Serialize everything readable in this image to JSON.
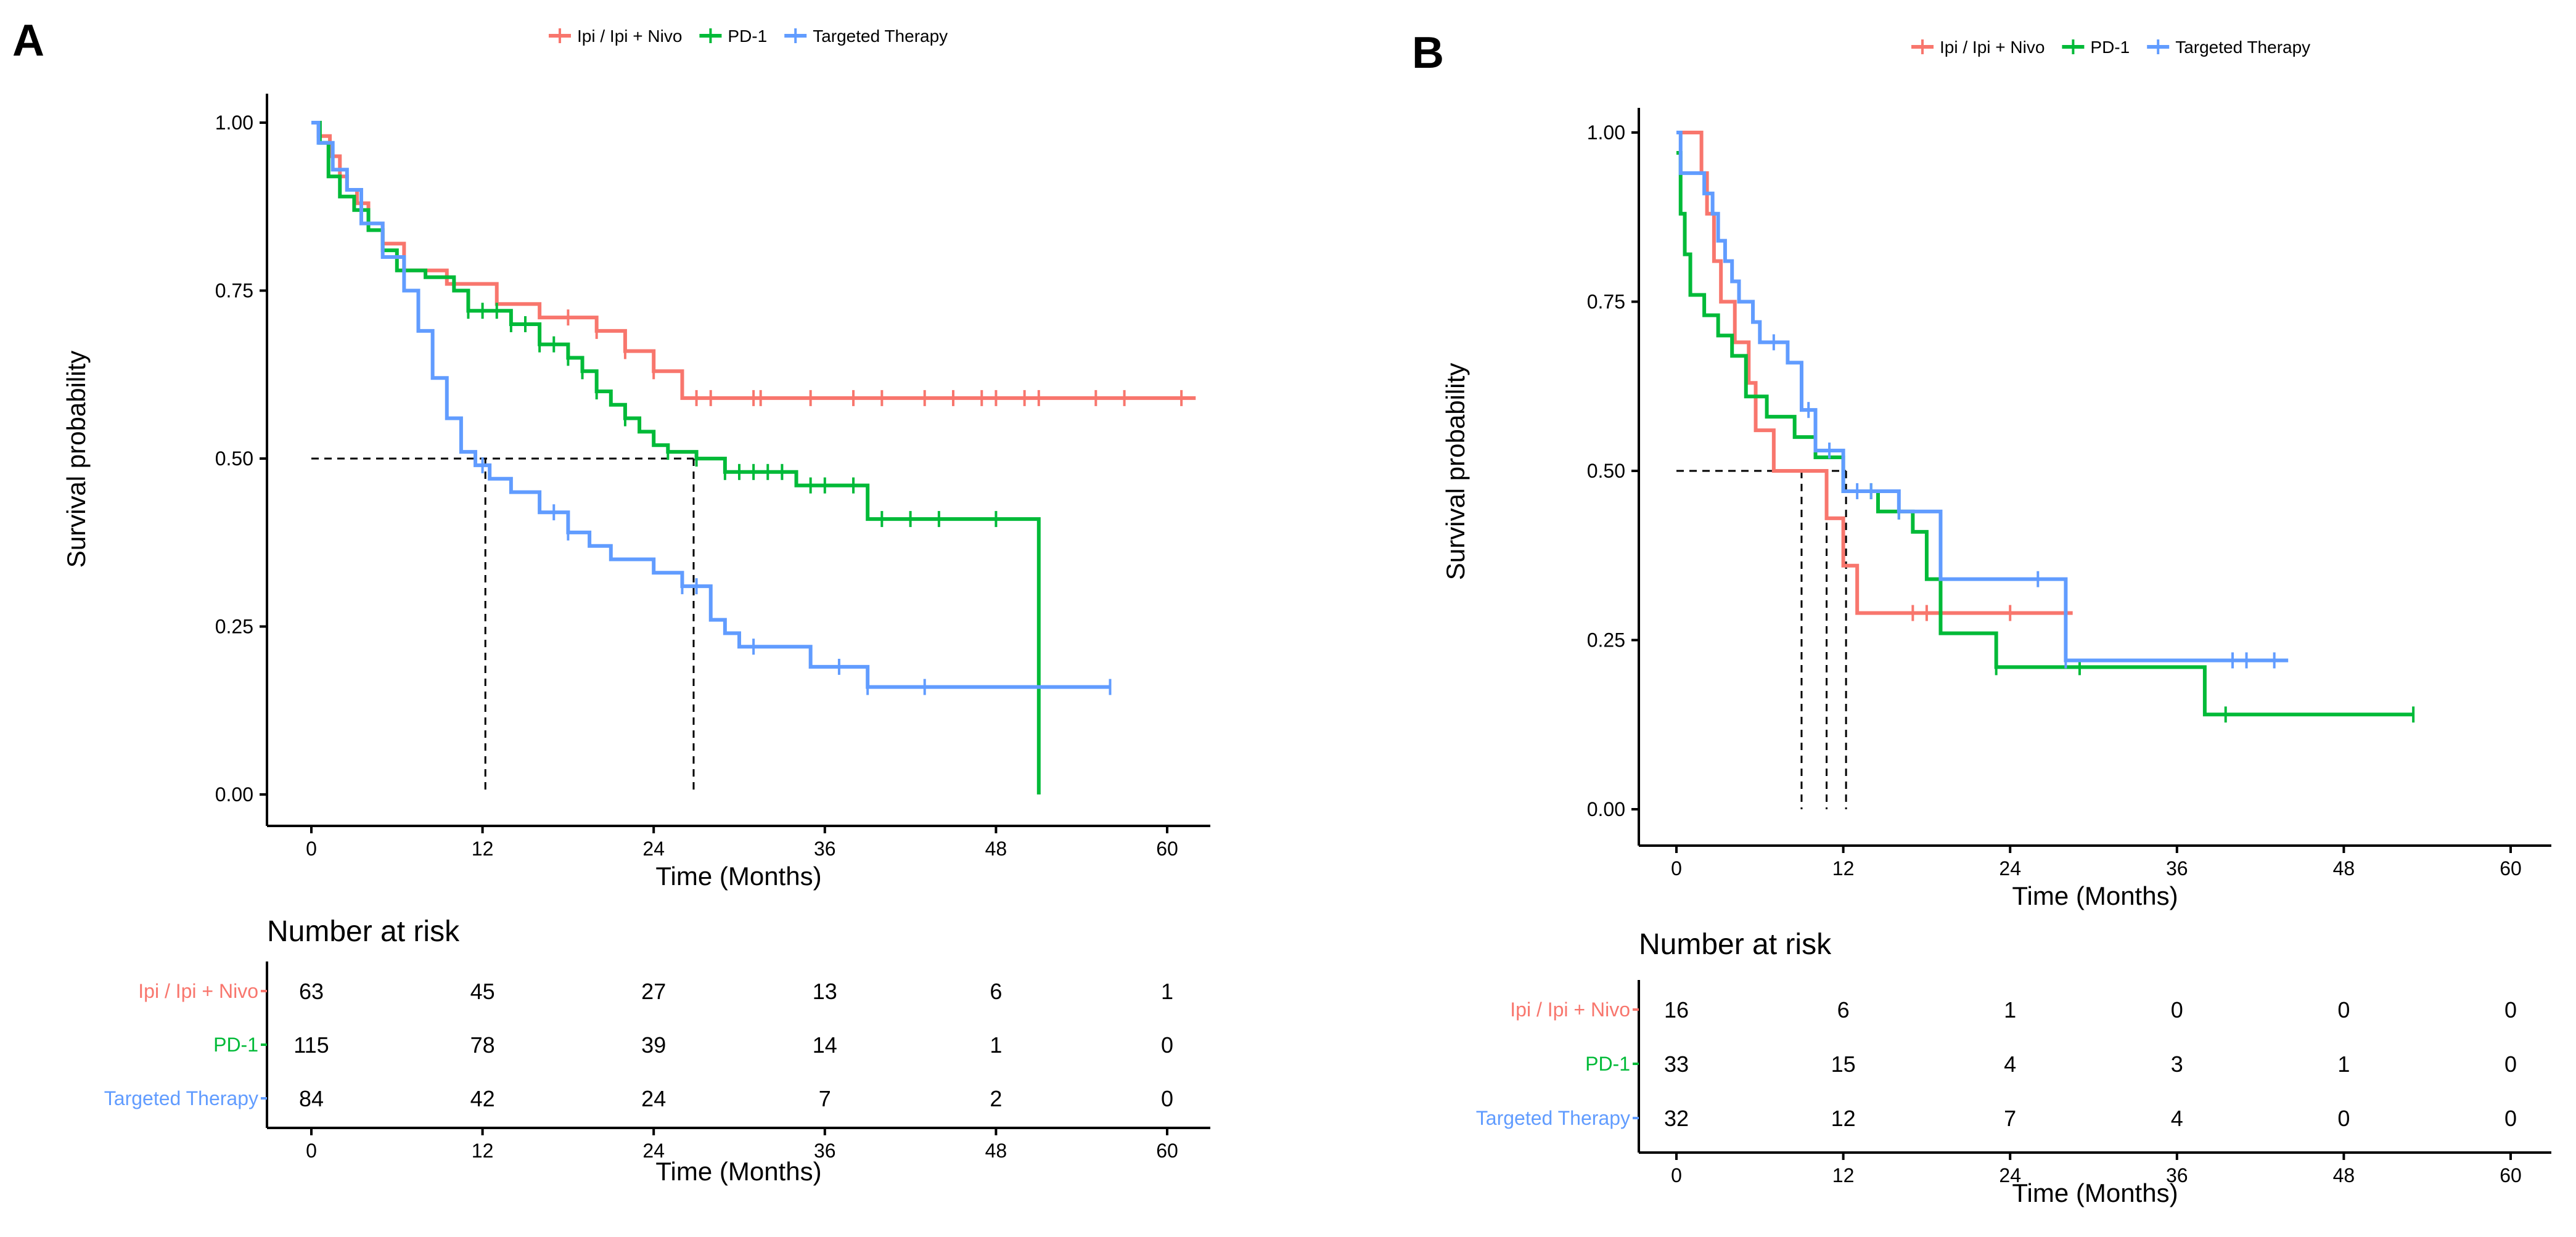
{
  "colors": {
    "ipi": "#F8766D",
    "pd1": "#00BA38",
    "targeted": "#619CFF"
  },
  "chart_data": [
    {
      "type": "line",
      "panel_label": "A",
      "title": "",
      "xlabel": "Time (Months)",
      "ylabel": "Survival probability",
      "xlim": [
        -2,
        63
      ],
      "ylim": [
        0,
        1
      ],
      "x_ticks": [
        0,
        12,
        24,
        36,
        48,
        60
      ],
      "y_ticks": [
        0,
        0.25,
        0.5,
        0.75,
        1.0
      ],
      "y_tick_labels": [
        "0.00",
        "0.25",
        "0.50",
        "0.75",
        "1.00"
      ],
      "legend": [
        "Ipi / Ipi + Nivo",
        "PD-1",
        "Targeted Therapy"
      ],
      "legend_position": "top",
      "series": [
        {
          "name": "Ipi / Ipi + Nivo",
          "color_key": "ipi",
          "x": [
            0,
            0.5,
            1.3,
            2.0,
            2.5,
            3.2,
            4.0,
            5.0,
            6.5,
            9.5,
            13.0,
            16.0,
            20.0,
            22.0,
            24.0,
            26.0,
            62.0
          ],
          "y": [
            1.0,
            0.98,
            0.95,
            0.92,
            0.9,
            0.88,
            0.85,
            0.82,
            0.78,
            0.76,
            0.73,
            0.71,
            0.69,
            0.66,
            0.63,
            0.59,
            0.59
          ],
          "censor_x": [
            18,
            20,
            22,
            24,
            27,
            28,
            31,
            31.5,
            35,
            38,
            40,
            43,
            45,
            47,
            48,
            50,
            51,
            55,
            57,
            61
          ]
        },
        {
          "name": "PD-1",
          "color_key": "pd1",
          "x": [
            0,
            0.6,
            1.2,
            2.0,
            3.0,
            4.0,
            5.0,
            6.0,
            8.0,
            10.0,
            11.0,
            14.0,
            16.0,
            18.0,
            19.0,
            20.0,
            21.0,
            22.0,
            23.0,
            24.0,
            25.0,
            27.0,
            29.0,
            34.0,
            39.0,
            51.0,
            51.0
          ],
          "y": [
            1.0,
            0.97,
            0.92,
            0.89,
            0.87,
            0.84,
            0.81,
            0.78,
            0.77,
            0.75,
            0.72,
            0.7,
            0.67,
            0.65,
            0.63,
            0.6,
            0.58,
            0.56,
            0.54,
            0.52,
            0.51,
            0.5,
            0.48,
            0.46,
            0.41,
            0.41,
            0.0
          ],
          "censor_x": [
            11,
            12,
            13,
            14,
            15,
            16,
            17,
            18,
            19,
            20,
            22,
            25,
            27,
            29,
            30,
            31,
            32,
            33,
            35,
            36,
            38,
            40,
            42,
            44,
            48
          ]
        },
        {
          "name": "Targeted Therapy",
          "color_key": "targeted",
          "x": [
            0,
            0.5,
            1.5,
            2.5,
            3.5,
            5.0,
            6.5,
            7.5,
            8.5,
            9.5,
            10.5,
            11.5,
            12.5,
            14.0,
            16.0,
            18.0,
            19.5,
            21.0,
            24.0,
            26.0,
            28.0,
            29.0,
            30.0,
            35.0,
            39.0,
            56.0
          ],
          "y": [
            1.0,
            0.97,
            0.93,
            0.9,
            0.85,
            0.8,
            0.75,
            0.69,
            0.62,
            0.56,
            0.51,
            0.49,
            0.47,
            0.45,
            0.42,
            0.39,
            0.37,
            0.35,
            0.33,
            0.31,
            0.26,
            0.24,
            0.22,
            0.19,
            0.16,
            0.16
          ],
          "censor_x": [
            12,
            17,
            18,
            26,
            27,
            31,
            37,
            39,
            43,
            56
          ]
        }
      ],
      "median_times": [
        12.2,
        26.8
      ],
      "risk_table": {
        "title": "Number at risk",
        "xlabel": "Time (Months)",
        "x_ticks": [
          0,
          12,
          24,
          36,
          48,
          60
        ],
        "rows": [
          {
            "label": "Ipi / Ipi + Nivo",
            "color_key": "ipi",
            "values": [
              "63",
              "45",
              "27",
              "13",
              "6",
              "1"
            ]
          },
          {
            "label": "PD-1",
            "color_key": "pd1",
            "values": [
              "115",
              "78",
              "39",
              "14",
              "1",
              "0"
            ]
          },
          {
            "label": "Targeted Therapy",
            "color_key": "targeted",
            "values": [
              "84",
              "42",
              "24",
              "7",
              "2",
              "0"
            ]
          }
        ]
      }
    },
    {
      "type": "line",
      "panel_label": "B",
      "title": "",
      "xlabel": "Time (Months)",
      "ylabel": "Survival probability",
      "xlim": [
        -2,
        63
      ],
      "ylim": [
        0,
        1
      ],
      "x_ticks": [
        0,
        12,
        24,
        36,
        48,
        60
      ],
      "y_ticks": [
        0,
        0.25,
        0.5,
        0.75,
        1.0
      ],
      "y_tick_labels": [
        "0.00",
        "0.25",
        "0.50",
        "0.75",
        "1.00"
      ],
      "legend": [
        "Ipi / Ipi + Nivo",
        "PD-1",
        "Targeted Therapy"
      ],
      "legend_position": "top",
      "series": [
        {
          "name": "Ipi / Ipi + Nivo",
          "color_key": "ipi",
          "x": [
            0,
            1.8,
            2.2,
            2.7,
            3.2,
            4.2,
            5.2,
            5.7,
            7.0,
            8.5,
            10.8,
            12.0,
            13.0,
            28.5
          ],
          "y": [
            1.0,
            0.94,
            0.88,
            0.81,
            0.75,
            0.69,
            0.63,
            0.56,
            0.5,
            0.5,
            0.43,
            0.36,
            0.29,
            0.29
          ],
          "censor_x": [
            17,
            18,
            24,
            28
          ]
        },
        {
          "name": "PD-1",
          "color_key": "pd1",
          "x": [
            0,
            0.3,
            0.6,
            1.0,
            2.0,
            3.0,
            4.0,
            5.0,
            6.5,
            8.5,
            10.0,
            12.0,
            14.5,
            17.0,
            18.0,
            19.0,
            23.0,
            38.0,
            53.0
          ],
          "y": [
            0.97,
            0.88,
            0.82,
            0.76,
            0.73,
            0.7,
            0.67,
            0.61,
            0.58,
            0.55,
            0.52,
            0.47,
            0.44,
            0.41,
            0.34,
            0.26,
            0.21,
            0.14,
            0.14
          ],
          "censor_x": [
            14,
            16,
            23,
            29,
            39.5,
            53
          ]
        },
        {
          "name": "Targeted Therapy",
          "color_key": "targeted",
          "x": [
            0,
            0.3,
            2.0,
            2.6,
            3.0,
            3.5,
            4.0,
            4.5,
            5.5,
            6.0,
            8.0,
            9.0,
            10.0,
            12.0,
            16.0,
            19.0,
            28.0,
            44.0
          ],
          "y": [
            1.0,
            0.94,
            0.91,
            0.88,
            0.84,
            0.81,
            0.78,
            0.75,
            0.72,
            0.69,
            0.66,
            0.59,
            0.53,
            0.47,
            0.44,
            0.34,
            0.22,
            0.22
          ],
          "censor_x": [
            7,
            9.5,
            11,
            13,
            14,
            16,
            26,
            28,
            40,
            41,
            43
          ]
        }
      ],
      "median_times": [
        9.0,
        10.8,
        12.2
      ],
      "risk_table": {
        "title": "Number at risk",
        "xlabel": "Time (Months)",
        "x_ticks": [
          0,
          12,
          24,
          36,
          48,
          60
        ],
        "rows": [
          {
            "label": "Ipi / Ipi + Nivo",
            "color_key": "ipi",
            "values": [
              "16",
              "6",
              "1",
              "0",
              "0",
              "0"
            ]
          },
          {
            "label": "PD-1",
            "color_key": "pd1",
            "values": [
              "33",
              "15",
              "4",
              "3",
              "1",
              "0"
            ]
          },
          {
            "label": "Targeted Therapy",
            "color_key": "targeted",
            "values": [
              "32",
              "12",
              "7",
              "4",
              "0",
              "0"
            ]
          }
        ]
      }
    }
  ]
}
